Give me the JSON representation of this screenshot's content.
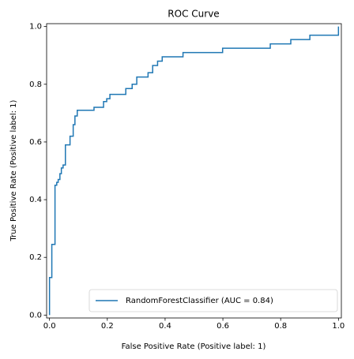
{
  "chart_data": {
    "type": "line",
    "title": "ROC Curve",
    "x_label": "False Positive Rate (Positive label: 1)",
    "y_label": "True Positive Rate (Positive label: 1)",
    "xlim": [
      -0.01,
      1.01
    ],
    "ylim": [
      -0.01,
      1.01
    ],
    "xticks": [
      {
        "value": 0,
        "label": "0.0"
      },
      0.2,
      0.4,
      0.6,
      0.8,
      {
        "value": 1,
        "label": "1.0"
      }
    ],
    "yticks": [
      {
        "value": 0,
        "label": "0.0"
      },
      0.2,
      0.4,
      0.6,
      0.8,
      {
        "value": 1,
        "label": "1.0"
      }
    ],
    "legend": "lower right",
    "x": [
      0,
      0,
      0.008,
      0.008,
      0.019,
      0.019,
      0.025,
      0.025,
      0.03,
      0.03,
      0.036,
      0.036,
      0.041,
      0.041,
      0.047,
      0.047,
      0.055,
      0.055,
      0.071,
      0.071,
      0.082,
      0.082,
      0.088,
      0.088,
      0.096,
      0.096,
      0.154,
      0.154,
      0.187,
      0.187,
      0.198,
      0.198,
      0.209,
      0.209,
      0.264,
      0.264,
      0.286,
      0.286,
      0.302,
      0.302,
      0.341,
      0.341,
      0.357,
      0.357,
      0.374,
      0.374,
      0.39,
      0.39,
      0.462,
      0.462,
      0.599,
      0.599,
      0.764,
      0.764,
      0.835,
      0.835,
      0.901,
      0.901,
      1,
      1
    ],
    "series": [
      {
        "name": "RandomForestClassifier (AUC = 0.84)",
        "color": "#1f77b4",
        "values": [
          0,
          0.13,
          0.13,
          0.245,
          0.245,
          0.45,
          0.45,
          0.46,
          0.46,
          0.47,
          0.47,
          0.49,
          0.49,
          0.51,
          0.51,
          0.52,
          0.52,
          0.59,
          0.59,
          0.62,
          0.62,
          0.66,
          0.66,
          0.69,
          0.69,
          0.71,
          0.71,
          0.72,
          0.72,
          0.74,
          0.74,
          0.75,
          0.75,
          0.765,
          0.765,
          0.785,
          0.785,
          0.8,
          0.8,
          0.825,
          0.825,
          0.84,
          0.84,
          0.865,
          0.865,
          0.88,
          0.88,
          0.895,
          0.895,
          0.91,
          0.91,
          0.925,
          0.925,
          0.94,
          0.94,
          0.955,
          0.955,
          0.97,
          0.97,
          1
        ]
      }
    ]
  }
}
